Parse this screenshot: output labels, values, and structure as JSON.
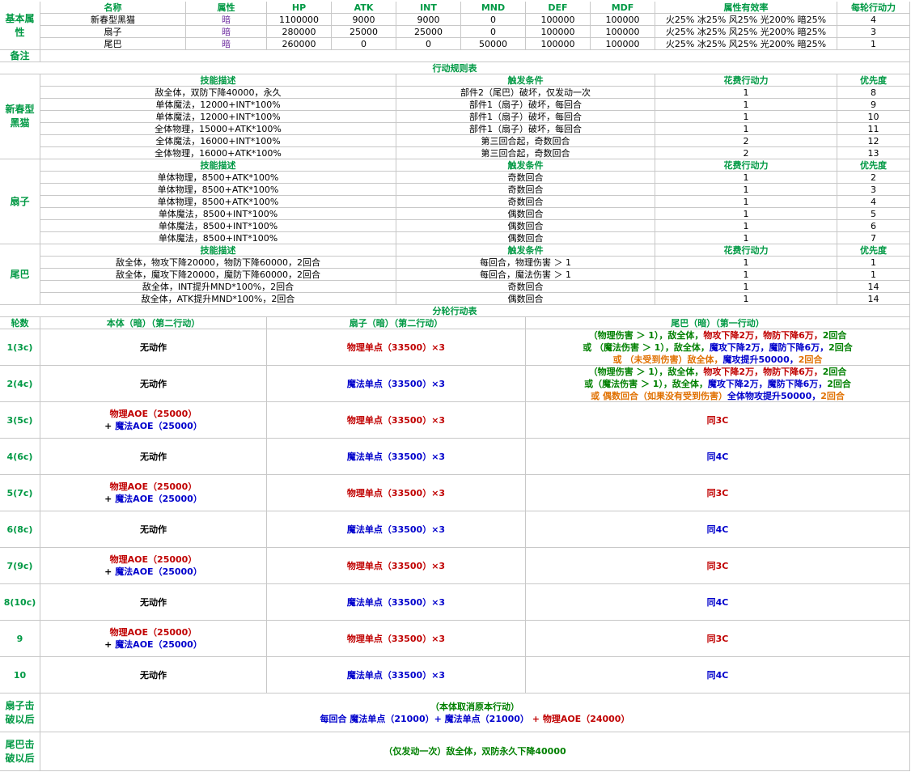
{
  "basic": {
    "label": "基本属性",
    "headers": [
      "名称",
      "属性",
      "HP",
      "ATK",
      "INT",
      "MND",
      "DEF",
      "MDF",
      "属性有效率",
      "每轮行动力"
    ],
    "rows": [
      [
        "新春型黑猫",
        "暗",
        1100000,
        9000,
        9000,
        0,
        100000,
        100000,
        "火25% 冰25% 风25% 光200% 暗25%",
        4
      ],
      [
        "扇子",
        "暗",
        280000,
        25000,
        25000,
        0,
        100000,
        100000,
        "火25% 冰25% 风25% 光200% 暗25%",
        3
      ],
      [
        "尾巴",
        "暗",
        260000,
        0,
        0,
        50000,
        100000,
        100000,
        "火25% 冰25% 风25% 光200% 暗25%",
        1
      ]
    ]
  },
  "note": {
    "label": "备注"
  },
  "rules": {
    "title": "行动规则表",
    "headers": [
      "技能描述",
      "触发条件",
      "花费行动力",
      "优先度"
    ],
    "groups": [
      {
        "name": "新春型黑猫",
        "rows": [
          [
            "敌全体，双防下降40000，永久",
            "部件2（尾巴）破坏，仅发动一次",
            1,
            8
          ],
          [
            "单体魔法，12000+INT*100%",
            "部件1（扇子）破坏，每回合",
            1,
            9
          ],
          [
            "单体魔法，12000+INT*100%",
            "部件1（扇子）破坏，每回合",
            1,
            10
          ],
          [
            "全体物理，15000+ATK*100%",
            "部件1（扇子）破坏，每回合",
            1,
            11
          ],
          [
            "全体魔法，16000+INT*100%",
            "第三回合起，奇数回合",
            2,
            12
          ],
          [
            "全体物理，16000+ATK*100%",
            "第三回合起，奇数回合",
            2,
            13
          ]
        ]
      },
      {
        "name": "扇子",
        "rows": [
          [
            "单体物理，8500+ATK*100%",
            "奇数回合",
            1,
            2
          ],
          [
            "单体物理，8500+ATK*100%",
            "奇数回合",
            1,
            3
          ],
          [
            "单体物理，8500+ATK*100%",
            "奇数回合",
            1,
            4
          ],
          [
            "单体魔法，8500+INT*100%",
            "偶数回合",
            1,
            5
          ],
          [
            "单体魔法，8500+INT*100%",
            "偶数回合",
            1,
            6
          ],
          [
            "单体魔法，8500+INT*100%",
            "偶数回合",
            1,
            7
          ]
        ]
      },
      {
        "name": "尾巴",
        "rows": [
          [
            "敌全体，物攻下降20000，物防下降60000，2回合",
            "每回合，物理伤害 ＞ 1",
            1,
            1
          ],
          [
            "敌全体，魔攻下降20000，魔防下降60000，2回合",
            "每回合，魔法伤害 ＞ 1",
            1,
            1
          ],
          [
            "敌全体，INT提升MND*100%，2回合",
            "奇数回合",
            1,
            14
          ],
          [
            "敌全体，ATK提升MND*100%，2回合",
            "偶数回合",
            1,
            14
          ]
        ]
      }
    ]
  },
  "rounds": {
    "title": "分轮行动表",
    "headers": [
      "轮数",
      "本体（暗）（第二行动）",
      "扇子（暗）（第二行动）",
      "尾巴（暗）（第一行动）"
    ],
    "rows": [
      {
        "round": "1(3c)",
        "main": [
          [
            {
              "text": "无动作",
              "color": "#000000"
            }
          ]
        ],
        "fan": [
          [
            {
              "text": "物理单点（33500）×3",
              "color": "#c00000"
            }
          ]
        ],
        "tail": [
          [
            {
              "text": "（物理伤害 ＞ 1），敌全体，",
              "color": "#008000"
            },
            {
              "text": "物攻下降2万，物防下降6万，",
              "color": "#c00000"
            },
            {
              "text": "2回合",
              "color": "#008000"
            }
          ],
          [
            {
              "text": "或 （魔法伤害 ＞ 1），敌全体，",
              "color": "#008000"
            },
            {
              "text": "魔攻下降2万，魔防下降6万，",
              "color": "#0000cc"
            },
            {
              "text": "2回合",
              "color": "#008000"
            }
          ],
          [
            {
              "text": "或 （未受到伤害）敌全体，",
              "color": "#e07000"
            },
            {
              "text": "魔攻提升50000，",
              "color": "#0000cc"
            },
            {
              "text": "2回合",
              "color": "#e07000"
            }
          ]
        ]
      },
      {
        "round": "2(4c)",
        "main": [
          [
            {
              "text": "无动作",
              "color": "#000000"
            }
          ]
        ],
        "fan": [
          [
            {
              "text": "魔法单点（33500）×3",
              "color": "#0000cc"
            }
          ]
        ],
        "tail": [
          [
            {
              "text": "（物理伤害 ＞ 1），敌全体，",
              "color": "#008000"
            },
            {
              "text": "物攻下降2万，物防下降6万，",
              "color": "#c00000"
            },
            {
              "text": "2回合",
              "color": "#008000"
            }
          ],
          [
            {
              "text": "或（魔法伤害 ＞ 1），敌全体，",
              "color": "#008000"
            },
            {
              "text": "魔攻下降2万，魔防下降6万，",
              "color": "#0000cc"
            },
            {
              "text": "2回合",
              "color": "#008000"
            }
          ],
          [
            {
              "text": "或 偶数回合（如果没有受到伤害）",
              "color": "#e07000"
            },
            {
              "text": "全体物攻提升50000，",
              "color": "#0000cc"
            },
            {
              "text": "2回合",
              "color": "#e07000"
            }
          ]
        ]
      },
      {
        "round": "3(5c)",
        "main": [
          [
            {
              "text": "物理AOE（25000）",
              "color": "#c00000"
            }
          ],
          [
            {
              "text": "+ ",
              "color": "#000000"
            },
            {
              "text": "魔法AOE（25000）",
              "color": "#0000cc"
            }
          ]
        ],
        "fan": [
          [
            {
              "text": "物理单点（33500）×3",
              "color": "#c00000"
            }
          ]
        ],
        "tail": [
          [
            {
              "text": "同3C",
              "color": "#c00000"
            }
          ]
        ]
      },
      {
        "round": "4(6c)",
        "main": [
          [
            {
              "text": "无动作",
              "color": "#000000"
            }
          ]
        ],
        "fan": [
          [
            {
              "text": "魔法单点（33500）×3",
              "color": "#0000cc"
            }
          ]
        ],
        "tail": [
          [
            {
              "text": "同4C",
              "color": "#0000cc"
            }
          ]
        ]
      },
      {
        "round": "5(7c)",
        "main": [
          [
            {
              "text": "物理AOE（25000）",
              "color": "#c00000"
            }
          ],
          [
            {
              "text": "+ ",
              "color": "#000000"
            },
            {
              "text": "魔法AOE（25000）",
              "color": "#0000cc"
            }
          ]
        ],
        "fan": [
          [
            {
              "text": "物理单点（33500）×3",
              "color": "#c00000"
            }
          ]
        ],
        "tail": [
          [
            {
              "text": "同3C",
              "color": "#c00000"
            }
          ]
        ]
      },
      {
        "round": "6(8c)",
        "main": [
          [
            {
              "text": "无动作",
              "color": "#000000"
            }
          ]
        ],
        "fan": [
          [
            {
              "text": "魔法单点（33500）×3",
              "color": "#0000cc"
            }
          ]
        ],
        "tail": [
          [
            {
              "text": "同4C",
              "color": "#0000cc"
            }
          ]
        ]
      },
      {
        "round": "7(9c)",
        "main": [
          [
            {
              "text": "物理AOE（25000）",
              "color": "#c00000"
            }
          ],
          [
            {
              "text": "+ ",
              "color": "#000000"
            },
            {
              "text": "魔法AOE（25000）",
              "color": "#0000cc"
            }
          ]
        ],
        "fan": [
          [
            {
              "text": "物理单点（33500）×3",
              "color": "#c00000"
            }
          ]
        ],
        "tail": [
          [
            {
              "text": "同3C",
              "color": "#c00000"
            }
          ]
        ]
      },
      {
        "round": "8(10c)",
        "main": [
          [
            {
              "text": "无动作",
              "color": "#000000"
            }
          ]
        ],
        "fan": [
          [
            {
              "text": "魔法单点（33500）×3",
              "color": "#0000cc"
            }
          ]
        ],
        "tail": [
          [
            {
              "text": "同4C",
              "color": "#0000cc"
            }
          ]
        ]
      },
      {
        "round": "9",
        "main": [
          [
            {
              "text": "物理AOE（25000）",
              "color": "#c00000"
            }
          ],
          [
            {
              "text": "+ ",
              "color": "#000000"
            },
            {
              "text": "魔法AOE（25000）",
              "color": "#0000cc"
            }
          ]
        ],
        "fan": [
          [
            {
              "text": "物理单点（33500）×3",
              "color": "#c00000"
            }
          ]
        ],
        "tail": [
          [
            {
              "text": "同3C",
              "color": "#c00000"
            }
          ]
        ]
      },
      {
        "round": "10",
        "main": [
          [
            {
              "text": "无动作",
              "color": "#000000"
            }
          ]
        ],
        "fan": [
          [
            {
              "text": "魔法单点（33500）×3",
              "color": "#0000cc"
            }
          ]
        ],
        "tail": [
          [
            {
              "text": "同4C",
              "color": "#0000cc"
            }
          ]
        ]
      }
    ]
  },
  "after": [
    {
      "label": "扇子击破以后",
      "lines": [
        [
          {
            "text": "（本体取消原本行动）",
            "color": "#008000"
          }
        ],
        [
          {
            "text": "每回合 魔法单点（21000）+ 魔法单点（21000）",
            "color": "#0000cc"
          },
          {
            "text": " + 物理AOE（24000）",
            "color": "#c00000"
          }
        ]
      ]
    },
    {
      "label": "尾巴击破以后",
      "lines": [
        [
          {
            "text": "（仅发动一次）敌全体，双防永久下降40000",
            "color": "#008000"
          }
        ]
      ]
    }
  ]
}
